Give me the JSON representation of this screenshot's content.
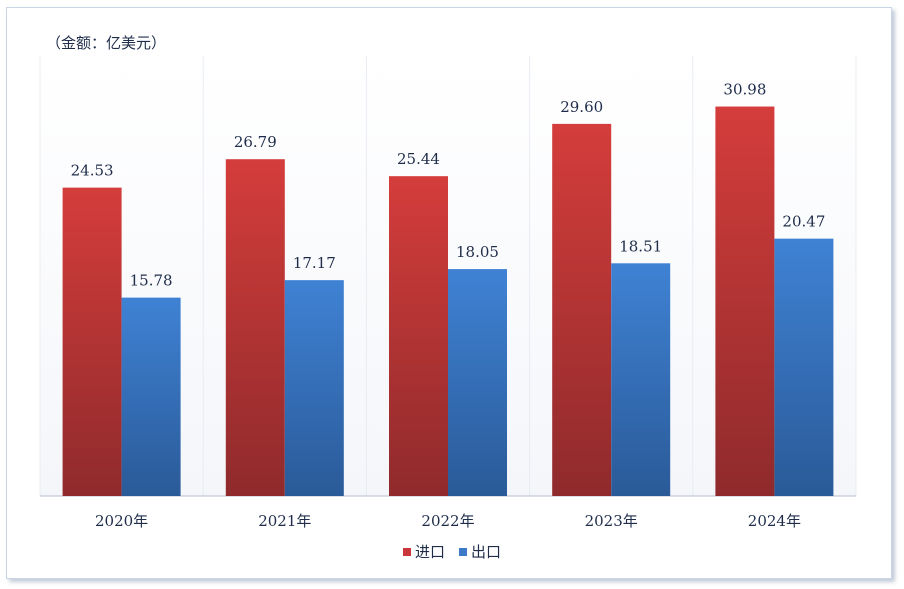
{
  "chart_data": {
    "type": "bar",
    "unit_label": "（金额：亿美元）",
    "categories": [
      "2020年",
      "2021年",
      "2022年",
      "2023年",
      "2024年"
    ],
    "series": [
      {
        "name": "进口",
        "values": [
          24.53,
          26.79,
          25.44,
          29.6,
          30.98
        ],
        "labels": [
          "24.53",
          "26.79",
          "25.44",
          "29.60",
          "30.98"
        ],
        "color": "#c9373a"
      },
      {
        "name": "出口",
        "values": [
          15.78,
          17.17,
          18.05,
          18.51,
          20.47
        ],
        "labels": [
          "15.78",
          "17.17",
          "18.05",
          "18.51",
          "20.47"
        ],
        "color": "#3b7ac9"
      }
    ],
    "ylim": [
      0,
      35
    ],
    "grid": "vertical-category-separators",
    "legend_position": "bottom-center"
  }
}
